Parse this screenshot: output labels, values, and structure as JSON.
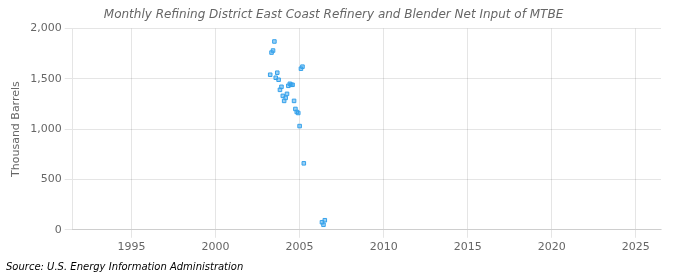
{
  "chart_data": {
    "type": "scatter",
    "title": "Monthly Refining District East Coast Refinery and Blender Net Input of MTBE",
    "ylabel": "Thousand Barrels",
    "annotations": [
      "Source: U.S. Energy Information Administration"
    ],
    "marker": "square",
    "grid": true,
    "xlim": [
      1991.5,
      2026.5
    ],
    "ylim": [
      0,
      2000
    ],
    "xticks": [
      1995,
      2000,
      2005,
      2010,
      2015,
      2020,
      2025
    ],
    "yticks": [
      0,
      500,
      {
        "value": 1000,
        "label": "1,000"
      },
      {
        "value": 1500,
        "label": "1,500"
      },
      {
        "value": 2000,
        "label": "2,000"
      }
    ],
    "x": [
      2003.25,
      2003.33,
      2003.42,
      2003.5,
      2003.58,
      2003.67,
      2003.75,
      2003.83,
      2003.92,
      2004.0,
      2004.08,
      2004.17,
      2004.25,
      2004.33,
      2004.42,
      2004.5,
      2004.58,
      2004.67,
      2004.75,
      2004.83,
      2004.92,
      2005.0,
      2005.08,
      2005.17,
      2005.25,
      2006.33,
      2006.42,
      2006.5
    ],
    "values": [
      1540,
      1760,
      1780,
      1870,
      1510,
      1560,
      1490,
      1390,
      1420,
      1330,
      1280,
      1310,
      1350,
      1430,
      1450,
      1440,
      1440,
      1280,
      1200,
      1170,
      1160,
      1030,
      1600,
      1620,
      660,
      75,
      50,
      95
    ]
  }
}
